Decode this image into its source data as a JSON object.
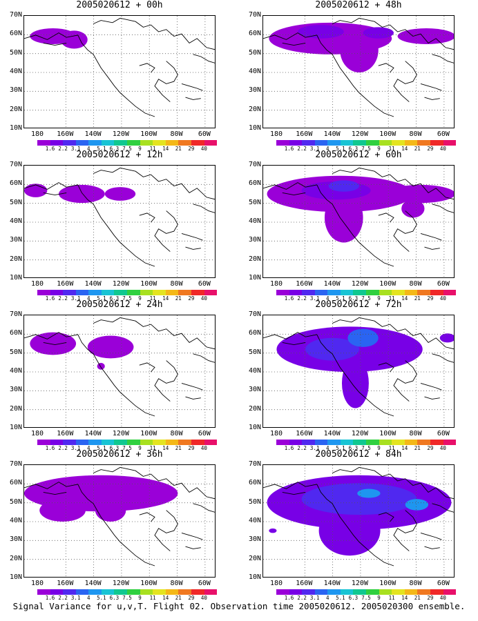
{
  "panels": [
    {
      "title": "2005020612 + 00h"
    },
    {
      "title": "2005020612 + 48h"
    },
    {
      "title": "2005020612 + 12h"
    },
    {
      "title": "2005020612 + 60h"
    },
    {
      "title": "2005020612 + 24h"
    },
    {
      "title": "2005020612 + 72h"
    },
    {
      "title": "2005020612 + 36h"
    },
    {
      "title": "2005020612 + 84h"
    }
  ],
  "lat_labels": [
    "70N",
    "60N",
    "50N",
    "40N",
    "30N",
    "20N",
    "10N"
  ],
  "lon_labels": [
    "180",
    "160W",
    "140W",
    "120W",
    "100W",
    "80W",
    "60W"
  ],
  "colorbar": {
    "labels": [
      "1.6",
      "2.2",
      "3.1",
      "4",
      "5.1",
      "6.3",
      "7.5",
      "9",
      "11",
      "14",
      "21",
      "29",
      "40"
    ],
    "colors": [
      "#9a00d8",
      "#7800e6",
      "#5028f0",
      "#2a64f2",
      "#1e96f0",
      "#18c4d4",
      "#10c890",
      "#30d040",
      "#a8e020",
      "#e4e420",
      "#f4b818",
      "#f07820",
      "#f02828",
      "#e8106a"
    ]
  },
  "caption": "Signal Variance for u,v,T. Flight 02. Observation time 2005020612. 2005020300 ensemble."
}
